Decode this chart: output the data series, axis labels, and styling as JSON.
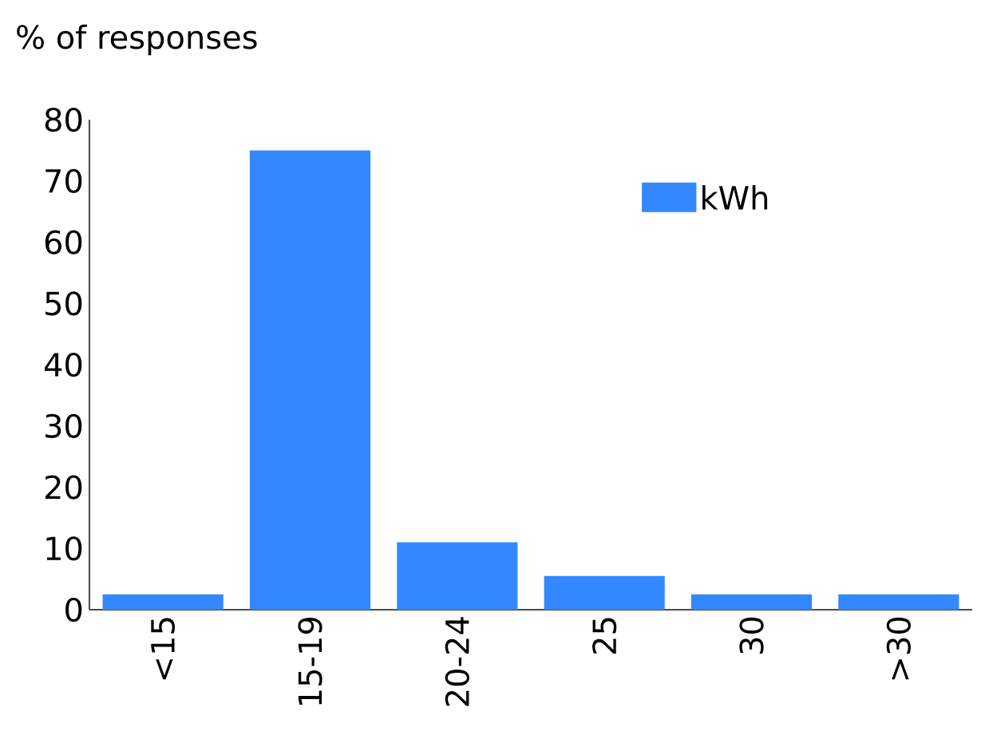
{
  "chart_data": {
    "type": "bar",
    "ylabel": "% of responses",
    "categories": [
      "<15",
      "15-19",
      "20-24",
      "25",
      "30",
      ">30"
    ],
    "series": [
      {
        "name": "kWh",
        "color": "#3388ff",
        "values": [
          2.5,
          75,
          11,
          5.5,
          2.5,
          2.5
        ]
      }
    ],
    "ylim": [
      0,
      80
    ],
    "yticks": [
      0,
      10,
      20,
      30,
      40,
      50,
      60,
      70,
      80
    ],
    "grid": false,
    "legend": "top right"
  }
}
